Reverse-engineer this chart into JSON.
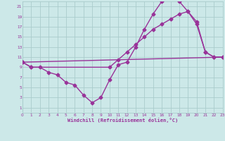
{
  "xlabel": "Windchill (Refroidissement éolien,°C)",
  "bg_color": "#cce8e8",
  "grid_color": "#aacccc",
  "line_color": "#993399",
  "x_min": 0,
  "x_max": 23,
  "y_min": 0,
  "y_max": 22,
  "yticks": [
    1,
    3,
    5,
    7,
    9,
    11,
    13,
    15,
    17,
    19,
    21
  ],
  "xticks": [
    0,
    1,
    2,
    3,
    4,
    5,
    6,
    7,
    8,
    9,
    10,
    11,
    12,
    13,
    14,
    15,
    16,
    17,
    18,
    19,
    20,
    21,
    22,
    23
  ],
  "line1_x": [
    0,
    1,
    2,
    3,
    4,
    5,
    6,
    7,
    8,
    9,
    10,
    11,
    12,
    13,
    14,
    15,
    16,
    17,
    18,
    19,
    20,
    21,
    22,
    23
  ],
  "line1_y": [
    10,
    9,
    9,
    8,
    7.5,
    6,
    5.5,
    3.5,
    2,
    3,
    6.5,
    9.5,
    10,
    13,
    16.5,
    19.5,
    22,
    22.5,
    22,
    20,
    17.5,
    12,
    11,
    11
  ],
  "line2_x": [
    0,
    1,
    10,
    11,
    12,
    13,
    14,
    15,
    16,
    17,
    18,
    19,
    20,
    21,
    22,
    23
  ],
  "line2_y": [
    10,
    9,
    9,
    10.5,
    12,
    13.5,
    15,
    16.5,
    17.5,
    18.5,
    19.5,
    20,
    18,
    12,
    11,
    11
  ],
  "line3_x": [
    0,
    23
  ],
  "line3_y": [
    10,
    11
  ],
  "marker_size": 2.5,
  "line_width": 1.0
}
